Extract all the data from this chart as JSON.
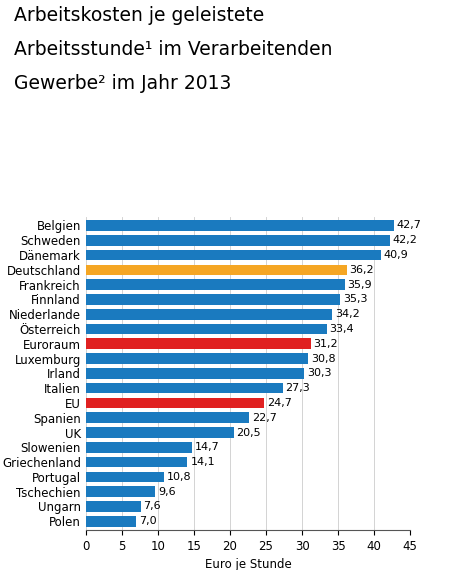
{
  "title_lines": [
    "Arbeitskosten je geleistete",
    "Arbeitsstunde¹ im Verarbeitenden",
    "Gewerbe² im Jahr 2013"
  ],
  "categories": [
    "Belgien",
    "Schweden",
    "Dänemark",
    "Deutschland",
    "Frankreich",
    "Finnland",
    "Niederlande",
    "Österreich",
    "Euroraum",
    "Luxemburg",
    "Irland",
    "Italien",
    "EU",
    "Spanien",
    "UK",
    "Slowenien",
    "Griechenland",
    "Portugal",
    "Tschechien",
    "Ungarn",
    "Polen"
  ],
  "values": [
    42.7,
    42.2,
    40.9,
    36.2,
    35.9,
    35.3,
    34.2,
    33.4,
    31.2,
    30.8,
    30.3,
    27.3,
    24.7,
    22.7,
    20.5,
    14.7,
    14.1,
    10.8,
    9.6,
    7.6,
    7.0
  ],
  "colors": [
    "#1a7abf",
    "#1a7abf",
    "#1a7abf",
    "#f5a623",
    "#1a7abf",
    "#1a7abf",
    "#1a7abf",
    "#1a7abf",
    "#e02020",
    "#1a7abf",
    "#1a7abf",
    "#1a7abf",
    "#e02020",
    "#1a7abf",
    "#1a7abf",
    "#1a7abf",
    "#1a7abf",
    "#1a7abf",
    "#1a7abf",
    "#1a7abf",
    "#1a7abf"
  ],
  "xlabel": "Euro je Stunde",
  "xlim": [
    0,
    45
  ],
  "xticks": [
    0,
    5,
    10,
    15,
    20,
    25,
    30,
    35,
    40,
    45
  ],
  "background_color": "#ffffff",
  "bar_height": 0.72,
  "value_fontsize": 8.0,
  "label_fontsize": 8.5,
  "title_fontsize": 13.5
}
